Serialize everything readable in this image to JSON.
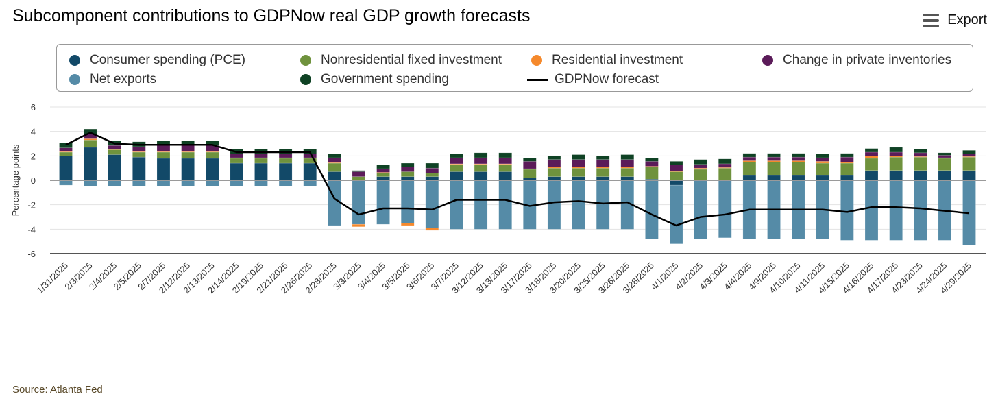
{
  "title": "Subcomponent contributions to GDPNow real GDP growth forecasts",
  "export_label": "Export",
  "source": "Source: Atlanta Fed",
  "legend": {
    "items": [
      {
        "label": "Consumer spending (PCE)",
        "color": "#124968"
      },
      {
        "label": "Nonresidential fixed investment",
        "color": "#6f923d"
      },
      {
        "label": "Residential investment",
        "color": "#f5892c"
      },
      {
        "label": "Change in private inventories",
        "color": "#5b1b59"
      },
      {
        "label": "Net exports",
        "color": "#558ba7"
      },
      {
        "label": "Government spending",
        "color": "#0f4224"
      },
      {
        "label": "GDPNow forecast",
        "color": "#000000"
      }
    ]
  },
  "chart_data": {
    "type": "bar",
    "stacked": true,
    "ylabel": "Percentage points",
    "ylim": [
      -6,
      6
    ],
    "yticks": [
      6,
      4,
      2,
      0,
      -2,
      -4,
      -6
    ],
    "grid": true,
    "legend_position": "top",
    "categories": [
      "1/31/2025",
      "2/3/2025",
      "2/4/2025",
      "2/5/2025",
      "2/7/2025",
      "2/12/2025",
      "2/13/2025",
      "2/14/2025",
      "2/19/2025",
      "2/21/2025",
      "2/26/2025",
      "2/28/2025",
      "3/3/2025",
      "3/4/2025",
      "3/5/2025",
      "3/6/2025",
      "3/7/2025",
      "3/12/2025",
      "3/13/2025",
      "3/17/2025",
      "3/18/2025",
      "3/20/2025",
      "3/25/2025",
      "3/26/2025",
      "3/28/2025",
      "4/1/2025",
      "4/2/2025",
      "4/3/2025",
      "4/4/2025",
      "4/9/2025",
      "4/10/2025",
      "4/11/2025",
      "4/15/2025",
      "4/16/2025",
      "4/17/2025",
      "4/23/2025",
      "4/24/2025",
      "4/29/2025"
    ],
    "series": [
      {
        "name": "Consumer spending (PCE)",
        "color": "#124968",
        "values": [
          2.0,
          2.7,
          2.1,
          1.9,
          1.8,
          1.8,
          1.8,
          1.4,
          1.4,
          1.4,
          1.4,
          0.7,
          0.0,
          0.3,
          0.3,
          0.3,
          0.7,
          0.7,
          0.7,
          0.2,
          0.3,
          0.3,
          0.3,
          0.3,
          0.1,
          -0.4,
          0.0,
          0.0,
          0.4,
          0.4,
          0.4,
          0.4,
          0.4,
          0.8,
          0.8,
          0.8,
          0.8,
          0.8
        ]
      },
      {
        "name": "Net exports",
        "color": "#558ba7",
        "values": [
          -0.4,
          -0.5,
          -0.5,
          -0.5,
          -0.5,
          -0.5,
          -0.5,
          -0.5,
          -0.5,
          -0.5,
          -0.5,
          -3.7,
          -3.6,
          -3.6,
          -3.5,
          -3.9,
          -4.0,
          -4.0,
          -4.0,
          -4.0,
          -4.0,
          -4.0,
          -4.0,
          -4.0,
          -4.8,
          -4.8,
          -4.8,
          -4.7,
          -4.8,
          -4.8,
          -4.8,
          -4.8,
          -4.9,
          -4.9,
          -4.9,
          -4.9,
          -4.9,
          -5.3
        ]
      },
      {
        "name": "Nonresidential fixed investment",
        "color": "#6f923d",
        "values": [
          0.3,
          0.6,
          0.4,
          0.4,
          0.5,
          0.5,
          0.5,
          0.4,
          0.4,
          0.4,
          0.4,
          0.7,
          0.3,
          0.3,
          0.4,
          0.3,
          0.6,
          0.6,
          0.6,
          0.7,
          0.7,
          0.7,
          0.7,
          0.7,
          1.0,
          0.7,
          0.9,
          1.0,
          1.1,
          1.1,
          1.1,
          1.0,
          1.0,
          1.0,
          1.1,
          1.1,
          1.0,
          1.1
        ]
      },
      {
        "name": "Residential investment",
        "color": "#f5892c",
        "values": [
          0.05,
          0.1,
          0.05,
          0.05,
          0.05,
          0.05,
          0.05,
          0.05,
          0.05,
          0.05,
          0.05,
          0.05,
          -0.2,
          0.05,
          -0.2,
          -0.2,
          0.05,
          0.05,
          0.05,
          0.05,
          0.1,
          0.1,
          0.1,
          0.1,
          0.05,
          0.05,
          0.1,
          0.05,
          0.1,
          0.1,
          0.1,
          0.15,
          0.1,
          0.2,
          0.1,
          0.05,
          0.05,
          0.05
        ]
      },
      {
        "name": "Change in private inventories",
        "color": "#5b1b59",
        "values": [
          0.3,
          0.4,
          0.3,
          0.4,
          0.5,
          0.5,
          0.5,
          0.3,
          0.3,
          0.3,
          0.3,
          0.4,
          0.4,
          0.3,
          0.4,
          0.4,
          0.5,
          0.5,
          0.5,
          0.6,
          0.6,
          0.6,
          0.6,
          0.6,
          0.4,
          0.5,
          0.3,
          0.3,
          0.3,
          0.3,
          0.3,
          0.3,
          0.4,
          0.3,
          0.3,
          0.3,
          0.2,
          0.2
        ]
      },
      {
        "name": "Government spending",
        "color": "#0f4224",
        "values": [
          0.4,
          0.4,
          0.4,
          0.4,
          0.4,
          0.4,
          0.4,
          0.4,
          0.4,
          0.4,
          0.4,
          0.3,
          0.1,
          0.3,
          0.3,
          0.4,
          0.3,
          0.4,
          0.4,
          0.3,
          0.3,
          0.4,
          0.3,
          0.4,
          0.3,
          0.3,
          0.4,
          0.4,
          0.3,
          0.3,
          0.3,
          0.3,
          0.3,
          0.3,
          0.4,
          0.3,
          0.2,
          0.3
        ]
      }
    ],
    "line": {
      "name": "GDPNow forecast",
      "color": "#000000",
      "values": [
        2.9,
        3.9,
        3.0,
        2.9,
        2.9,
        2.9,
        2.9,
        2.3,
        2.3,
        2.3,
        2.3,
        -1.5,
        -2.8,
        -2.3,
        -2.3,
        -2.4,
        -1.6,
        -1.6,
        -1.6,
        -2.1,
        -1.8,
        -1.7,
        -1.9,
        -1.8,
        -2.8,
        -3.7,
        -3.0,
        -2.8,
        -2.4,
        -2.4,
        -2.4,
        -2.4,
        -2.6,
        -2.2,
        -2.2,
        -2.3,
        -2.5,
        -2.7
      ]
    }
  }
}
